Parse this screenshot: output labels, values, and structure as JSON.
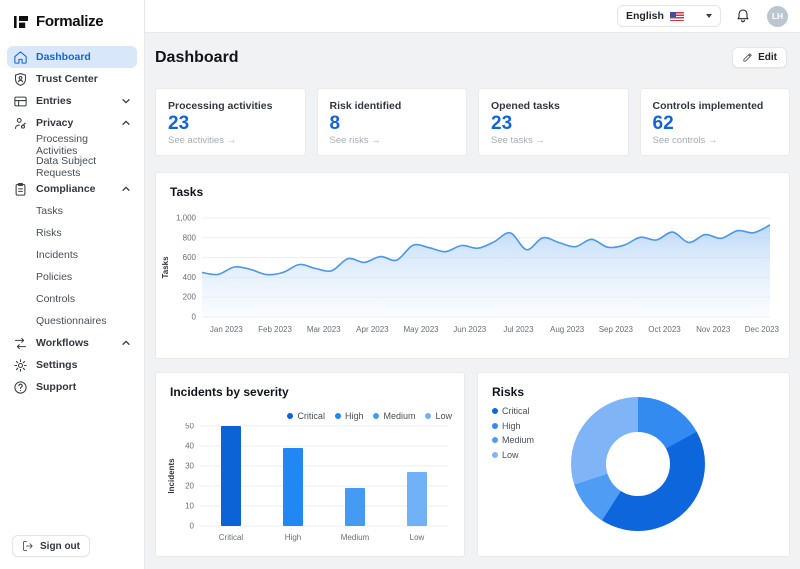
{
  "brand": {
    "name": "Formalize",
    "logo_icon": "formalize-logo-icon"
  },
  "topbar": {
    "language": "English",
    "language_flag_icon": "us-flag-icon",
    "bell_icon": "bell-icon",
    "avatar_initials": "LH"
  },
  "sidebar": {
    "items": [
      {
        "label": "Dashboard",
        "icon": "home-icon",
        "active": true
      },
      {
        "label": "Trust Center",
        "icon": "shield-icon"
      },
      {
        "label": "Entries",
        "icon": "entries-icon",
        "chevron": "down"
      },
      {
        "label": "Privacy",
        "icon": "privacy-person-icon",
        "chevron": "up"
      },
      {
        "label": "Processing Activities",
        "sub": true
      },
      {
        "label": "Data Subject Requests",
        "sub": true
      },
      {
        "label": "Compliance",
        "icon": "clipboard-icon",
        "chevron": "up"
      },
      {
        "label": "Tasks",
        "sub": true
      },
      {
        "label": "Risks",
        "sub": true
      },
      {
        "label": "Incidents",
        "sub": true
      },
      {
        "label": "Policies",
        "sub": true
      },
      {
        "label": "Controls",
        "sub": true
      },
      {
        "label": "Questionnaires",
        "sub": true
      },
      {
        "label": "Workflows",
        "icon": "workflows-icon",
        "chevron": "up"
      },
      {
        "label": "Settings",
        "icon": "gear-icon"
      },
      {
        "label": "Support",
        "icon": "help-icon"
      }
    ],
    "sign_out_label": "Sign out",
    "sign_out_icon": "logout-icon"
  },
  "page": {
    "title": "Dashboard",
    "edit_label": "Edit",
    "edit_icon": "pencil-icon"
  },
  "stat_cards": [
    {
      "title": "Processing activities",
      "value": "23",
      "link": "See activities →"
    },
    {
      "title": "Risk identified",
      "value": "8",
      "link": "See risks →"
    },
    {
      "title": "Opened tasks",
      "value": "23",
      "link": "See tasks →"
    },
    {
      "title": "Controls implemented",
      "value": "62",
      "link": "See controls →"
    }
  ],
  "colors": {
    "primary_blue": "#1465D8",
    "active_item_bg": "#D9E7FA",
    "main_bg": "#F1F2F4",
    "border": "#E6E8EB"
  },
  "chart_data": [
    {
      "type": "line",
      "title": "Tasks",
      "ylabel": "Tasks",
      "categories": [
        "Jan 2023",
        "Feb 2023",
        "Mar 2023",
        "Apr 2023",
        "May 2023",
        "Jun 2023",
        "Jul 2023",
        "Aug 2023",
        "Sep 2023",
        "Oct 2023",
        "Nov 2023",
        "Dec 2023"
      ],
      "points_per_month": 3,
      "values": [
        450,
        430,
        505,
        480,
        428,
        450,
        530,
        490,
        468,
        590,
        552,
        610,
        575,
        725,
        700,
        660,
        722,
        695,
        760,
        850,
        680,
        800,
        752,
        710,
        785,
        705,
        725,
        805,
        778,
        858,
        752,
        832,
        795,
        872,
        852,
        930
      ],
      "ylim": [
        0,
        1000
      ],
      "yticks": [
        0,
        200,
        400,
        600,
        800,
        1000
      ],
      "grid": true,
      "line_color": "#4D96EC",
      "area_fill_top": "#A8CDF5",
      "area_fill_bottom": "#EAF2FC"
    },
    {
      "type": "bar",
      "title": "Incidents by severity",
      "ylabel": "Incidents",
      "categories": [
        "Critical",
        "High",
        "Medium",
        "Low"
      ],
      "values": [
        50,
        39,
        19,
        27
      ],
      "ylim": [
        0,
        50
      ],
      "yticks": [
        0,
        10,
        20,
        30,
        40,
        50
      ],
      "grid": true,
      "legend_position": "top-right",
      "legend": [
        {
          "label": "Critical",
          "color": "#0B63D6"
        },
        {
          "label": "High",
          "color": "#2187F2"
        },
        {
          "label": "Medium",
          "color": "#459BF4"
        },
        {
          "label": "Low",
          "color": "#71B1F7"
        }
      ]
    },
    {
      "type": "donut",
      "title": "Risks",
      "legend_position": "left",
      "legend": [
        {
          "label": "Critical",
          "color": "#0D66DB"
        },
        {
          "label": "High",
          "color": "#338BF1"
        },
        {
          "label": "Medium",
          "color": "#4E9CF4"
        },
        {
          "label": "Low",
          "color": "#7FB5F7"
        }
      ],
      "slices_clockwise_from_top": [
        {
          "label": "High",
          "percent": 17,
          "color": "#338BF1"
        },
        {
          "label": "Critical",
          "percent": 42,
          "color": "#0D66DB"
        },
        {
          "label": "Medium",
          "percent": 11,
          "color": "#4E9CF4"
        },
        {
          "label": "Low",
          "percent": 30,
          "color": "#7FB5F7"
        }
      ]
    }
  ]
}
